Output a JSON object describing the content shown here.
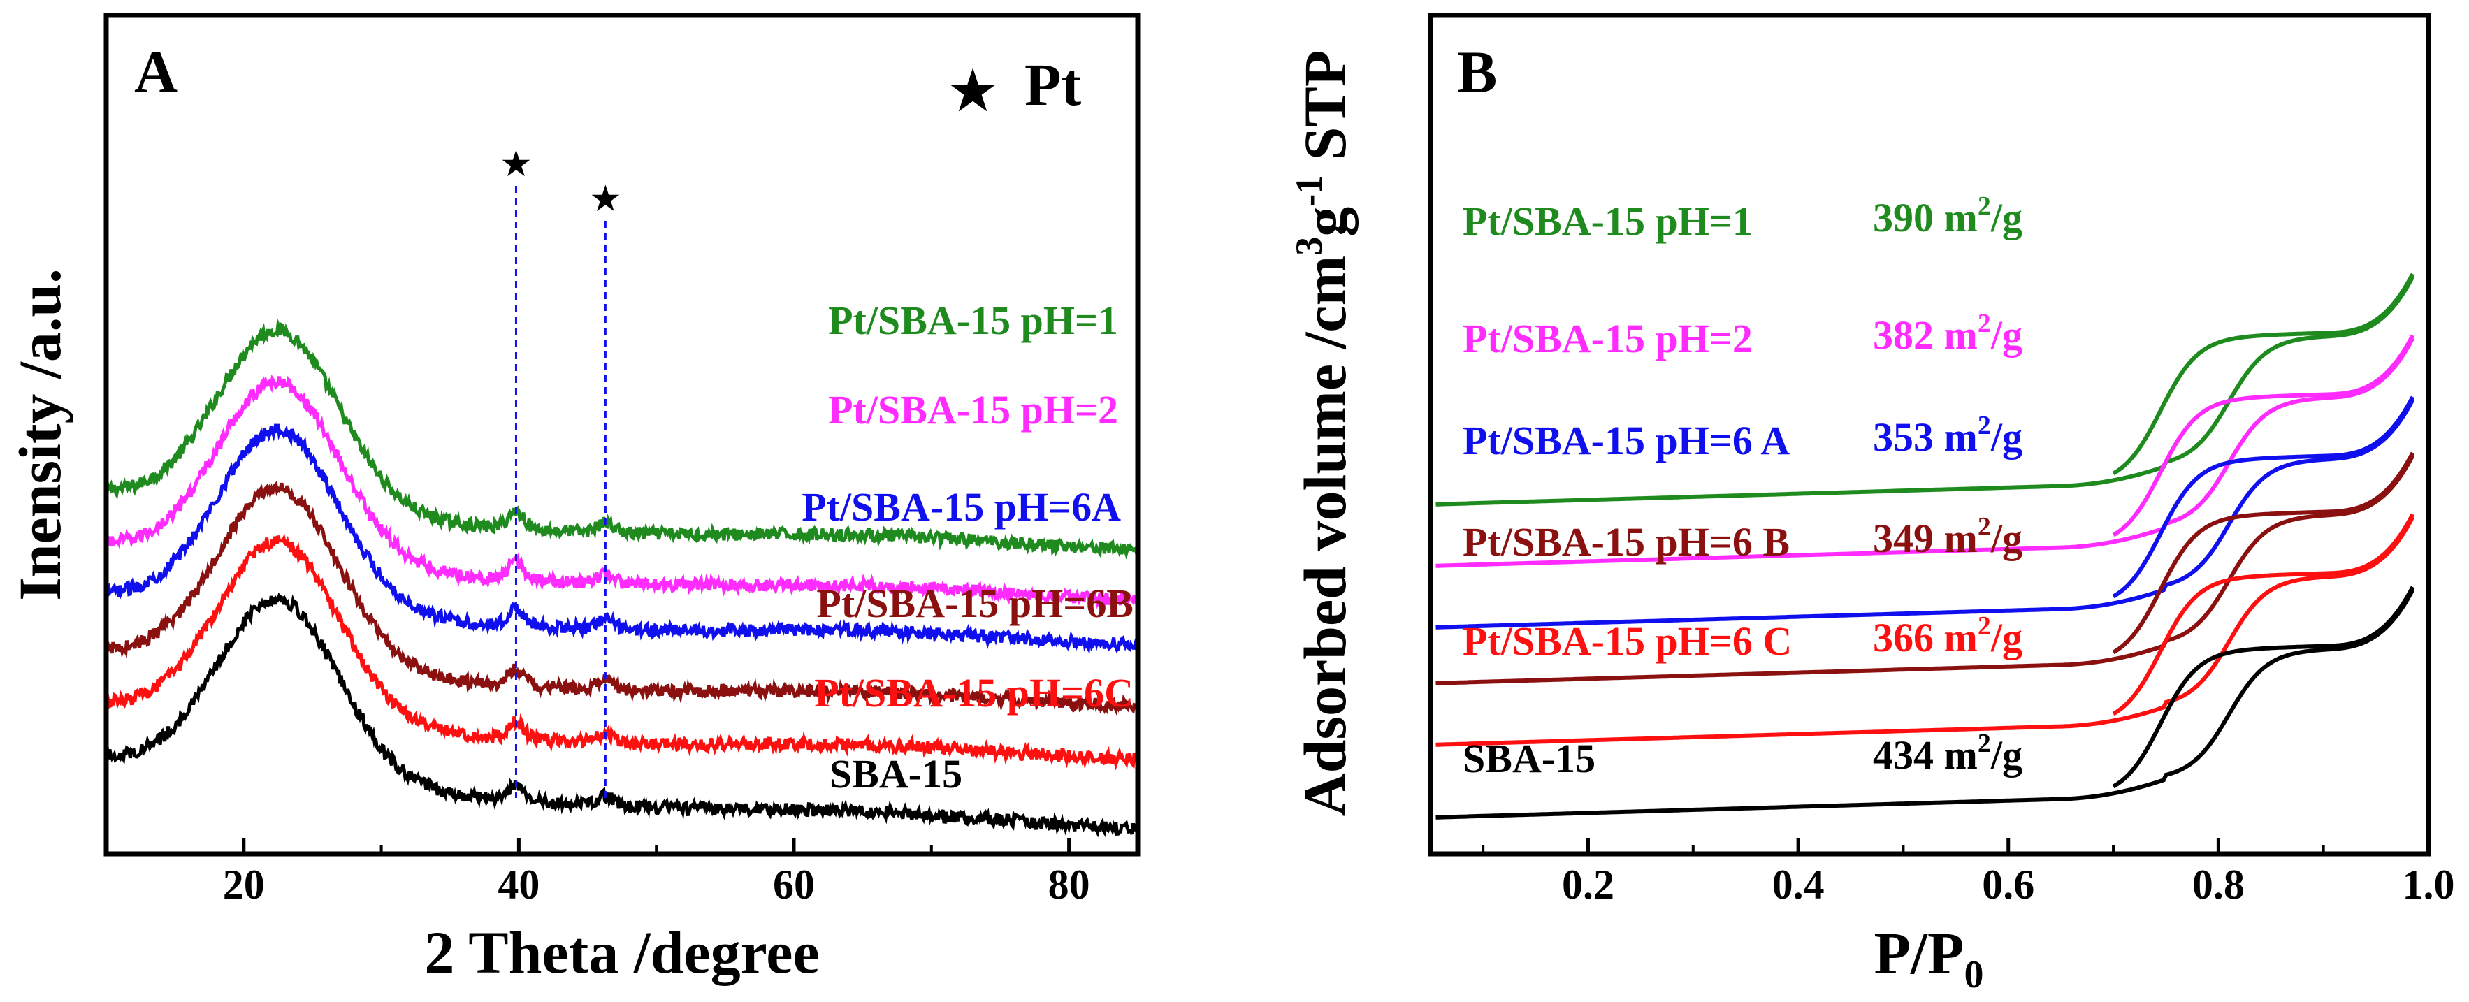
{
  "chart_data": [
    {
      "panel": "A",
      "type": "line",
      "xlabel": "2 Theta /degree",
      "ylabel": "Inensity /a.u.",
      "xlim": [
        10,
        85
      ],
      "xticks": [
        20,
        40,
        60,
        80
      ],
      "yticks_shown": false,
      "legend": {
        "marker": "★",
        "text": "Pt",
        "placement": "top-right"
      },
      "peak_markers": [
        {
          "x": 39.8,
          "symbol": "★"
        },
        {
          "x": 46.3,
          "symbol": "★"
        }
      ],
      "series": [
        {
          "name": "Pt/SBA-15 pH=1",
          "color": "#1f8b1f",
          "offset": 5.0,
          "baseline": 0.8,
          "tail": 0.35
        },
        {
          "name": "Pt/SBA-15 pH=2",
          "color": "#ff2bff",
          "offset": 4.1,
          "baseline": 0.75,
          "tail": 0.35
        },
        {
          "name": "Pt/SBA-15 pH=6A",
          "color": "#1010ee",
          "offset": 3.3,
          "baseline": 0.65,
          "tail": 0.35
        },
        {
          "name": "Pt/SBA-15 pH=6B",
          "color": "#8b1010",
          "offset": 2.2,
          "baseline": 0.75,
          "tail": 0.35
        },
        {
          "name": "Pt/SBA-15 pH=6C",
          "color": "#ff1010",
          "offset": 1.25,
          "baseline": 0.75,
          "tail": 0.35
        },
        {
          "name": "SBA-15",
          "color": "#000000",
          "offset": 0.0,
          "baseline": 0.85,
          "tail": 0.55
        }
      ]
    },
    {
      "panel": "B",
      "type": "line",
      "xlabel": "P/P",
      "xlabel_subscript": "0",
      "ylabel_parts": [
        "Adsorbed volume /cm",
        "3",
        "g",
        "-1",
        " STP"
      ],
      "xlim": [
        0.05,
        1.0
      ],
      "xticks": [
        0.2,
        0.4,
        0.6,
        0.8,
        1.0
      ],
      "yticks_shown": false,
      "surface_area_unit": "m",
      "surface_area_unit_exp": "2",
      "surface_area_unit_suffix": "/g",
      "series": [
        {
          "name": "Pt/SBA-15 pH=1",
          "color": "#1f8b1f",
          "surface_area": "390",
          "offset": 5.6
        },
        {
          "name": "Pt/SBA-15 pH=2",
          "color": "#ff2bff",
          "surface_area": "382",
          "offset": 4.5
        },
        {
          "name": "Pt/SBA-15 pH=6 A",
          "color": "#1010ee",
          "surface_area": "353",
          "offset": 3.4
        },
        {
          "name": "Pt/SBA-15 pH=6 B",
          "color": "#8b1010",
          "surface_area": "349",
          "offset": 2.4
        },
        {
          "name": "Pt/SBA-15 pH=6 C",
          "color": "#ff1010",
          "surface_area": "366",
          "offset": 1.3
        },
        {
          "name": "SBA-15",
          "color": "#000000",
          "surface_area": "434",
          "offset": 0.0
        }
      ]
    }
  ]
}
